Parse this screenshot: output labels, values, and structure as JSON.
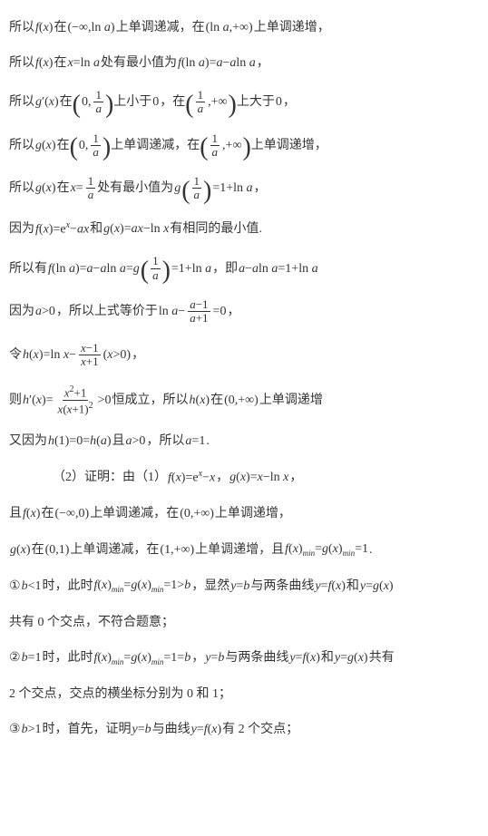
{
  "lines": {
    "l1_a": "所以",
    "l1_b": "在",
    "l1_c": "上单调递减，在",
    "l1_d": "上单调递增，",
    "l2_a": "所以",
    "l2_b": "在",
    "l2_c": "处有最小值为",
    "l3_a": "所以",
    "l3_b": "在",
    "l3_c": "上小于",
    "l3_d": "，在",
    "l3_e": "上大于",
    "l4_a": "所以",
    "l4_b": "在",
    "l4_c": "上单调递减，在",
    "l4_d": "上单调递增，",
    "l5_a": "所以",
    "l5_b": "在",
    "l5_c": "处有最小值为",
    "l6_a": "因为",
    "l6_b": "和",
    "l6_c": "有相同的最小值.",
    "l7_a": "所以有",
    "l7_b": "，即",
    "l8_a": "因为",
    "l8_b": "，所以上式等价于",
    "l9_a": "令",
    "l10_a": "则",
    "l10_b": "恒成立，所以",
    "l10_c": "在",
    "l10_d": "上单调递增",
    "l11_a": "又因为",
    "l11_b": "且",
    "l11_c": "，所以",
    "l12_a": "（2）证明：由（1）",
    "l13_a": "且",
    "l13_b": "在",
    "l13_c": "上单调递减，在",
    "l13_d": "上单调递增，",
    "l14_a": "在",
    "l14_b": "上单调递减，在",
    "l14_c": "上单调递增，且",
    "l15_a": "①",
    "l15_b": "时，此时",
    "l15_c": "，显然",
    "l15_d": "与两条曲线",
    "l15_e": "和",
    "l16": "共有 0 个交点，不符合题意；",
    "l17_a": "②",
    "l17_b": "时，此时",
    "l17_c": "与两条曲线",
    "l17_d": "和",
    "l17_e": "共有",
    "l18": "2 个交点，交点的横坐标分别为 0 和 1；",
    "l19_a": "③",
    "l19_b": "时，首先，证明",
    "l19_c": "与曲线",
    "l19_d": "有 2 个交点；"
  },
  "m": {
    "fx": "f",
    "gx": "g",
    "hx": "h",
    "x": "x",
    "a": "a",
    "b": "b",
    "e": "e",
    "y": "y",
    "ln": "ln",
    "inf": "∞",
    "neg": "−",
    "pos": "+",
    "eq": "=",
    "gt": ">",
    "lt": "<",
    "comma": "，",
    "zero": "0",
    "one": "1",
    "two": "2",
    "prime": "′",
    "min": "min",
    "dot": "."
  }
}
